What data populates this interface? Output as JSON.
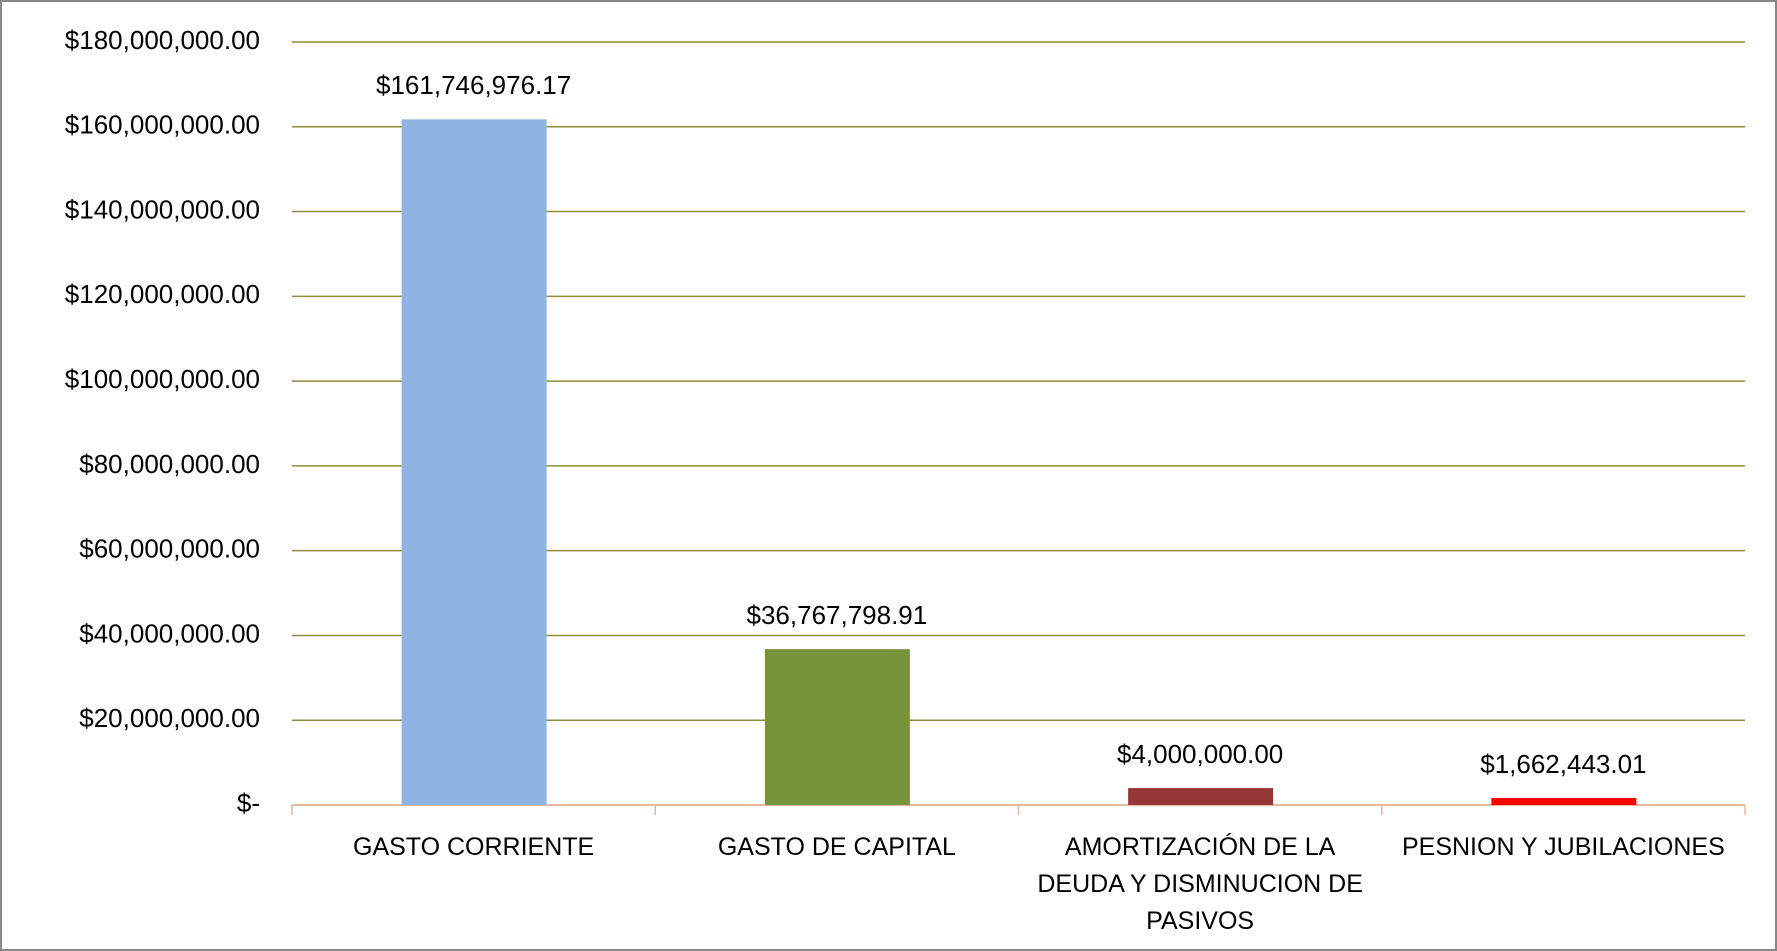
{
  "chart_data": {
    "type": "bar",
    "categories": [
      "GASTO CORRIENTE",
      "GASTO DE CAPITAL",
      "AMORTIZACIÓN DE LA DEUDA Y DISMINUCION DE PASIVOS",
      "PESNION Y JUBILACIONES"
    ],
    "values": [
      161746976.17,
      36767798.91,
      4000000,
      1662443.01
    ],
    "value_labels": [
      "$161,746,976.17",
      "$36,767,798.91",
      "$4,000,000.00",
      "$1,662,443.01"
    ],
    "colors": [
      "#8eb4e3",
      "#77933c",
      "#953735",
      "#ff0000"
    ],
    "ylim": [
      0,
      180000000
    ],
    "yticks": [
      {
        "value": 0,
        "label": "$-"
      },
      {
        "value": 20000000,
        "label": "$20,000,000.00"
      },
      {
        "value": 40000000,
        "label": "$40,000,000.00"
      },
      {
        "value": 60000000,
        "label": "$60,000,000.00"
      },
      {
        "value": 80000000,
        "label": "$80,000,000.00"
      },
      {
        "value": 100000000,
        "label": "$100,000,000.00"
      },
      {
        "value": 120000000,
        "label": "$120,000,000.00"
      },
      {
        "value": 140000000,
        "label": "$140,000,000.00"
      },
      {
        "value": 160000000,
        "label": "$160,000,000.00"
      },
      {
        "value": 180000000,
        "label": "$180,000,000.00"
      }
    ],
    "grid": true
  }
}
